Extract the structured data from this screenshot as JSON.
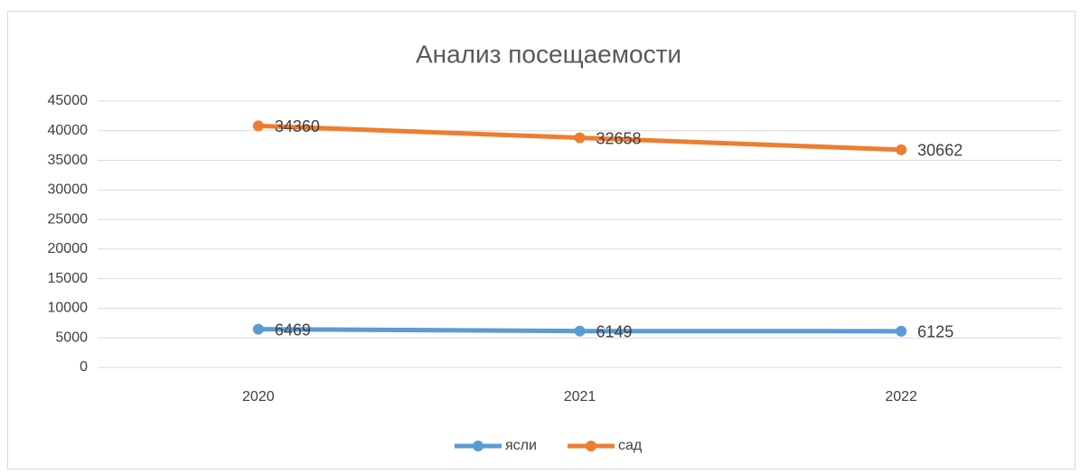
{
  "chart_data": {
    "type": "line",
    "stacked": true,
    "title": "Анализ посещаемости",
    "categories": [
      "2020",
      "2021",
      "2022"
    ],
    "series": [
      {
        "name": "ясли",
        "color": "#5b9bd5",
        "values": [
          6469,
          6149,
          6125
        ]
      },
      {
        "name": "сад",
        "color": "#ed7d31",
        "values": [
          34360,
          32658,
          30662
        ]
      }
    ],
    "ylim": [
      0,
      45000
    ],
    "yticks": [
      0,
      5000,
      10000,
      15000,
      20000,
      25000,
      30000,
      35000,
      40000,
      45000
    ],
    "grid": true,
    "legend": "bottom"
  }
}
